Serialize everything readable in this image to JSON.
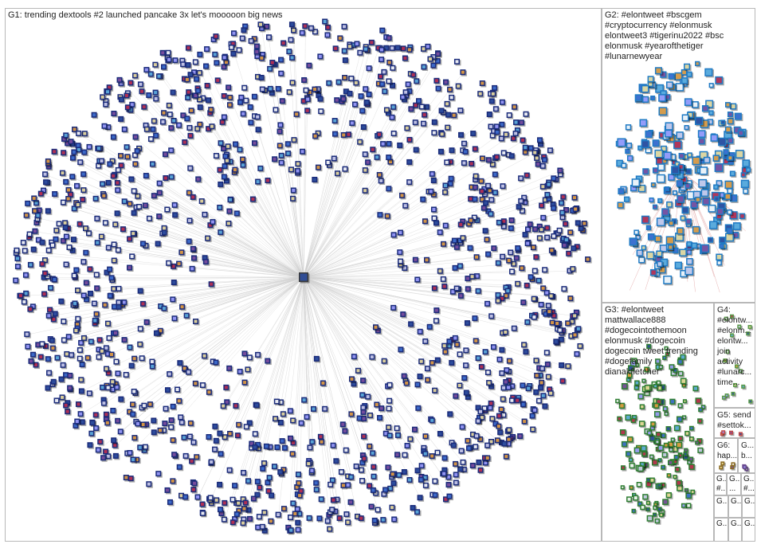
{
  "groups": [
    {
      "id": "G1",
      "label": "G1: trending dextools #2 launched pancake 3x let's mooooon big news",
      "color": "#1a2b7a"
    },
    {
      "id": "G2",
      "label_lines": [
        "G2: #elontweet #bscgem",
        "#cryptocurrency #elonmusk",
        "elontweet3 #tigerinu2022 #bsc",
        "elonmusk #yearofthetiger",
        "#lunarnewyear"
      ],
      "color": "#1f7ac4"
    },
    {
      "id": "G3",
      "label_lines": [
        "G3: #elontweet",
        "mattwallace888",
        "#dogecointothemoon",
        "elonmusk #dogecoin",
        "dogecoin tweet trending",
        "#dogefamily",
        "dianakfletcher"
      ],
      "color": "#2e7d32"
    },
    {
      "id": "G4",
      "label_lines": [
        "G4:",
        "#elontw...",
        "#elonm...",
        "elontw...",
        "join",
        "activity",
        "#lunarc...",
        "time..."
      ],
      "color": "#5a9a4a"
    },
    {
      "id": "G5",
      "label_lines": [
        "G5: send",
        "#settok..."
      ],
      "color": "#c04a4a"
    },
    {
      "id": "G6",
      "label_lines": [
        "G6:",
        "hap..."
      ],
      "color": "#8a6a20"
    },
    {
      "id": "G7",
      "label_lines": [
        "G...",
        "b..."
      ],
      "color": "#6a4a90"
    }
  ],
  "small_groups": [
    {
      "label_lines": [
        "G...",
        "#..."
      ]
    },
    {
      "label_lines": [
        "G...",
        "..."
      ]
    },
    {
      "label_lines": [
        "G...",
        "#..."
      ]
    },
    {
      "label_lines": [
        "G..."
      ]
    },
    {
      "label_lines": [
        "G..."
      ]
    },
    {
      "label_lines": [
        "G..."
      ]
    },
    {
      "label_lines": [
        "G..."
      ]
    },
    {
      "label_lines": [
        "G..."
      ]
    },
    {
      "label_lines": [
        "G..."
      ]
    }
  ]
}
